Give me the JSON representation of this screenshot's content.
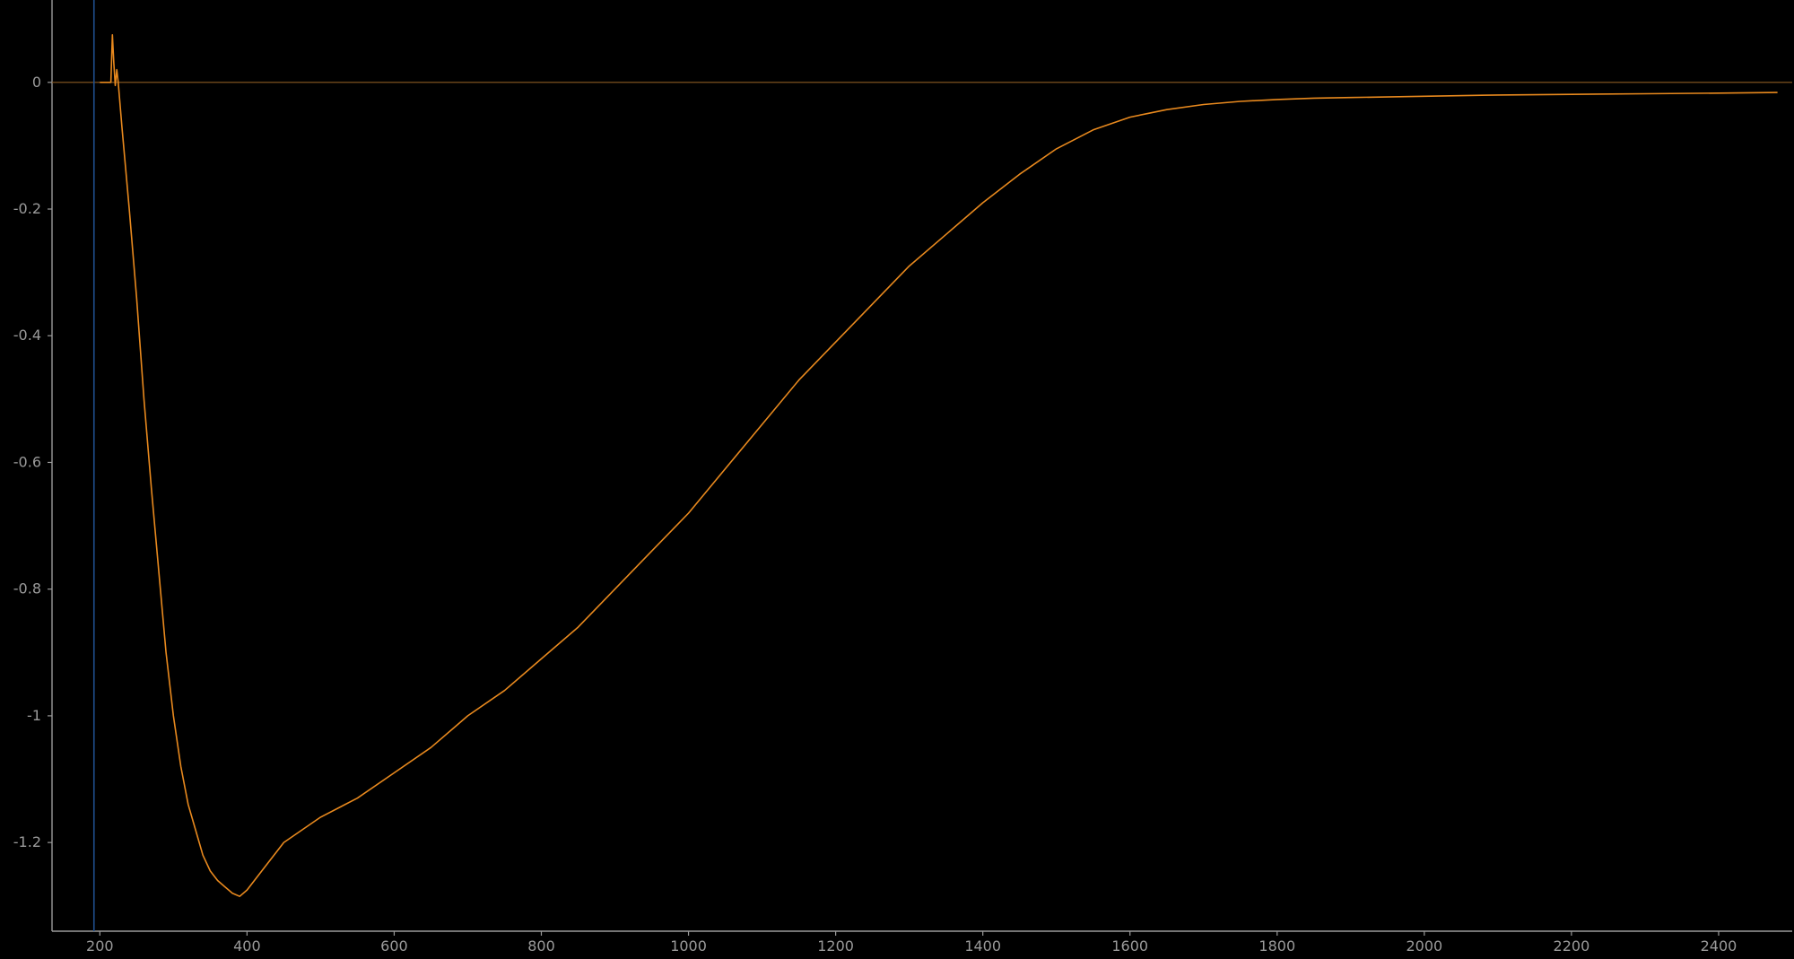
{
  "chart_data": {
    "type": "line",
    "title": "",
    "xlabel": "",
    "ylabel": "",
    "xlim": [
      135,
      2500
    ],
    "ylim": [
      -1.34,
      0.13
    ],
    "x_ticks": [
      200,
      400,
      600,
      800,
      1000,
      1200,
      1400,
      1600,
      1800,
      2000,
      2200,
      2400
    ],
    "y_ticks": [
      0,
      -0.2,
      -0.4,
      -0.6,
      -0.8,
      -1,
      -1.2
    ],
    "x_tick_labels": [
      "200",
      "400",
      "600",
      "800",
      "1000",
      "1200",
      "1400",
      "1600",
      "1800",
      "2000",
      "2200",
      "2400"
    ],
    "y_tick_labels": [
      "0",
      "-0.2",
      "-0.4",
      "-0.6",
      "-0.8",
      "-1",
      "-1.2"
    ],
    "grid": false,
    "zero_line": 0,
    "cursor_x": 192,
    "series": [
      {
        "color": "#e8891e",
        "x": [
          200,
          210,
          215,
          217,
          219,
          221,
          223,
          225,
          230,
          240,
          250,
          260,
          270,
          280,
          290,
          300,
          310,
          320,
          330,
          340,
          350,
          360,
          370,
          380,
          390,
          400,
          420,
          450,
          500,
          550,
          600,
          650,
          700,
          750,
          800,
          850,
          900,
          950,
          1000,
          1050,
          1100,
          1150,
          1200,
          1250,
          1300,
          1350,
          1400,
          1450,
          1500,
          1550,
          1600,
          1650,
          1700,
          1750,
          1800,
          1850,
          1900,
          2000,
          2100,
          2200,
          2300,
          2400,
          2480
        ],
        "y": [
          0.0,
          0.0,
          0.0,
          0.075,
          0.03,
          -0.005,
          0.02,
          0.0,
          -0.07,
          -0.2,
          -0.34,
          -0.5,
          -0.64,
          -0.77,
          -0.9,
          -1.0,
          -1.08,
          -1.14,
          -1.18,
          -1.22,
          -1.245,
          -1.26,
          -1.27,
          -1.28,
          -1.285,
          -1.275,
          -1.245,
          -1.2,
          -1.16,
          -1.13,
          -1.09,
          -1.05,
          -1.0,
          -0.96,
          -0.91,
          -0.86,
          -0.8,
          -0.74,
          -0.68,
          -0.61,
          -0.54,
          -0.47,
          -0.41,
          -0.35,
          -0.29,
          -0.24,
          -0.19,
          -0.145,
          -0.105,
          -0.075,
          -0.055,
          -0.043,
          -0.035,
          -0.03,
          -0.027,
          -0.025,
          -0.024,
          -0.022,
          -0.02,
          -0.019,
          -0.018,
          -0.017,
          -0.016
        ]
      }
    ]
  }
}
